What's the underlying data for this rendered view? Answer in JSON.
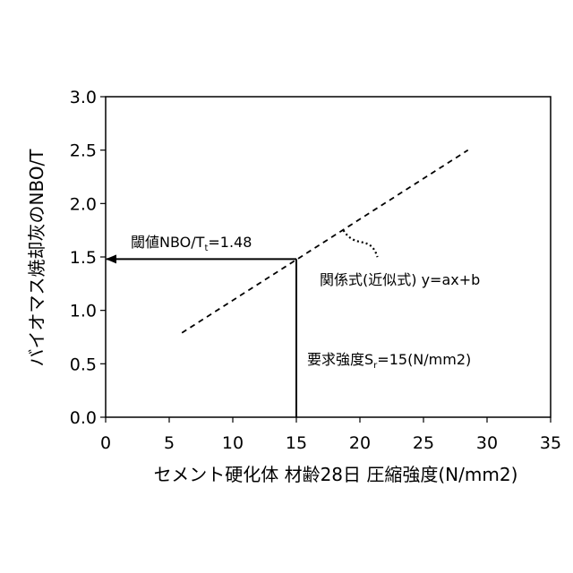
{
  "chart_data": {
    "type": "line",
    "xlabel": "セメント硬化体 材齢28日 圧縮強度(N/mm2)",
    "ylabel": "バイオマス焼却灰のNBO/T",
    "xlim": [
      0,
      35
    ],
    "ylim": [
      0,
      3.0
    ],
    "x_ticks": [
      "0",
      "5",
      "10",
      "15",
      "20",
      "25",
      "30",
      "35"
    ],
    "y_ticks": [
      "0.0",
      "0.5",
      "1.0",
      "1.5",
      "2.0",
      "2.5",
      "3.0"
    ],
    "x_tick_values": [
      0,
      5,
      10,
      15,
      20,
      25,
      30,
      35
    ],
    "y_tick_values": [
      0,
      0.5,
      1.0,
      1.5,
      2.0,
      2.5,
      3.0
    ],
    "series": [
      {
        "style": "dashed",
        "x": [
          6,
          28.5
        ],
        "y": [
          0.79,
          2.5
        ]
      }
    ],
    "required_strength": {
      "x": 15,
      "y": 1.48
    },
    "threshold": {
      "x": 15,
      "y": 1.48
    },
    "annotations": {
      "threshold_main": "閾値NBO/T",
      "threshold_sub": "t",
      "threshold_tail": "=1.48",
      "required_main": "要求強度S",
      "required_sub": "r",
      "required_tail": "=15(N/mm2)",
      "relation": "関係式(近似式) y=ax+b"
    },
    "grid": false,
    "legend": "none"
  }
}
